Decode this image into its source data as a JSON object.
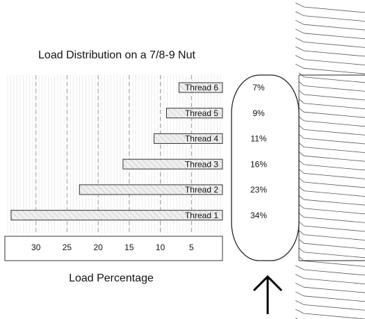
{
  "chart_data": {
    "type": "bar",
    "orientation": "horizontal",
    "title": "Load Distribution on a 7/8-9 Nut",
    "x_label": "Load Percentage",
    "categories": [
      "Thread 6",
      "Thread 5",
      "Thread 4",
      "Thread 3",
      "Thread 2",
      "Thread 1"
    ],
    "values": [
      7,
      9,
      11,
      16,
      23,
      34
    ],
    "value_labels": [
      "7%",
      "9%",
      "11%",
      "16%",
      "23%",
      "34%"
    ],
    "color": "#e6e6e6",
    "xlim": [
      35,
      0
    ],
    "xticks": [
      30,
      25,
      20,
      15,
      10,
      5
    ],
    "grid": true
  }
}
